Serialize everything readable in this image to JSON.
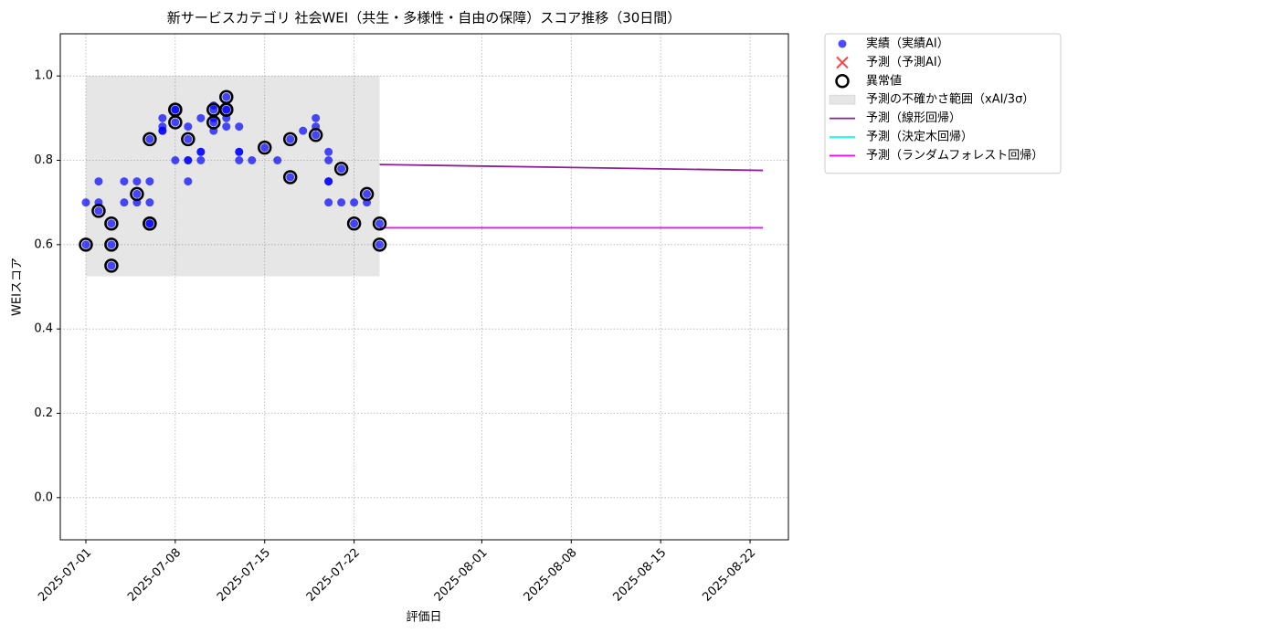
{
  "chart_data": {
    "type": "scatter",
    "title": "新サービスカテゴリ 社会WEI（共生・多様性・自由の保障）スコア推移（30日間）",
    "x_label": "評価日",
    "y_label": "WEIスコア",
    "xlim": [
      "2025-06-29",
      "2025-08-25"
    ],
    "xticks": [
      "2025-07-01",
      "2025-07-08",
      "2025-07-15",
      "2025-07-22",
      "2025-08-01",
      "2025-08-08",
      "2025-08-15",
      "2025-08-22"
    ],
    "ylim": [
      -0.1,
      1.1
    ],
    "yticks": [
      {
        "value": 0,
        "label": "0.0"
      },
      {
        "value": 0.2,
        "label": "0.2"
      },
      {
        "value": 0.4,
        "label": "0.4"
      },
      {
        "value": 0.6,
        "label": "0.6"
      },
      {
        "value": 0.8,
        "label": "0.8"
      },
      {
        "value": 1,
        "label": "1.0"
      }
    ],
    "grid": true,
    "legend": "outside-upper-right",
    "series": [
      {
        "name": "実績（実績AI）",
        "kind": "dots",
        "color": "#0000ff",
        "x": [
          "2025-07-01",
          "2025-07-01",
          "2025-07-02",
          "2025-07-02",
          "2025-07-02",
          "2025-07-03",
          "2025-07-03",
          "2025-07-03",
          "2025-07-04",
          "2025-07-04",
          "2025-07-05",
          "2025-07-05",
          "2025-07-05",
          "2025-07-06",
          "2025-07-06",
          "2025-07-06",
          "2025-07-06",
          "2025-07-06",
          "2025-07-07",
          "2025-07-07",
          "2025-07-07",
          "2025-07-07",
          "2025-07-08",
          "2025-07-08",
          "2025-07-08",
          "2025-07-08",
          "2025-07-09",
          "2025-07-09",
          "2025-07-09",
          "2025-07-09",
          "2025-07-09",
          "2025-07-10",
          "2025-07-10",
          "2025-07-10",
          "2025-07-10",
          "2025-07-11",
          "2025-07-11",
          "2025-07-11",
          "2025-07-11",
          "2025-07-11",
          "2025-07-12",
          "2025-07-12",
          "2025-07-12",
          "2025-07-12",
          "2025-07-12",
          "2025-07-13",
          "2025-07-13",
          "2025-07-13",
          "2025-07-13",
          "2025-07-14",
          "2025-07-15",
          "2025-07-16",
          "2025-07-17",
          "2025-07-17",
          "2025-07-18",
          "2025-07-19",
          "2025-07-19",
          "2025-07-19",
          "2025-07-20",
          "2025-07-20",
          "2025-07-20",
          "2025-07-20",
          "2025-07-20",
          "2025-07-21",
          "2025-07-21",
          "2025-07-22",
          "2025-07-22",
          "2025-07-23",
          "2025-07-23",
          "2025-07-24",
          "2025-07-24"
        ],
        "values": [
          0.6,
          0.7,
          0.68,
          0.75,
          0.7,
          0.55,
          0.65,
          0.6,
          0.7,
          0.75,
          0.7,
          0.75,
          0.72,
          0.65,
          0.65,
          0.7,
          0.75,
          0.85,
          0.88,
          0.9,
          0.87,
          0.87,
          0.8,
          0.92,
          0.89,
          0.92,
          0.88,
          0.85,
          0.8,
          0.75,
          0.8,
          0.9,
          0.82,
          0.8,
          0.82,
          0.9,
          0.92,
          0.87,
          0.89,
          0.93,
          0.95,
          0.92,
          0.92,
          0.88,
          0.9,
          0.8,
          0.82,
          0.88,
          0.82,
          0.8,
          0.83,
          0.8,
          0.85,
          0.76,
          0.87,
          0.86,
          0.9,
          0.88,
          0.8,
          0.82,
          0.7,
          0.75,
          0.75,
          0.78,
          0.7,
          0.65,
          0.7,
          0.7,
          0.72,
          0.65,
          0.6
        ]
      },
      {
        "name": "予測（予測AI）",
        "kind": "cross",
        "color": "#ff0000",
        "x": [],
        "values": []
      },
      {
        "name": "異常値",
        "kind": "ring",
        "color": "#000000",
        "x": [
          "2025-07-01",
          "2025-07-02",
          "2025-07-03",
          "2025-07-03",
          "2025-07-03",
          "2025-07-05",
          "2025-07-06",
          "2025-07-06",
          "2025-07-06",
          "2025-07-08",
          "2025-07-08",
          "2025-07-08",
          "2025-07-09",
          "2025-07-11",
          "2025-07-11",
          "2025-07-12",
          "2025-07-12",
          "2025-07-12",
          "2025-07-15",
          "2025-07-17",
          "2025-07-17",
          "2025-07-19",
          "2025-07-21",
          "2025-07-22",
          "2025-07-23",
          "2025-07-24",
          "2025-07-24"
        ],
        "values": [
          0.6,
          0.68,
          0.55,
          0.65,
          0.6,
          0.72,
          0.65,
          0.65,
          0.85,
          0.92,
          0.89,
          0.92,
          0.85,
          0.92,
          0.89,
          0.95,
          0.92,
          0.92,
          0.83,
          0.85,
          0.76,
          0.86,
          0.78,
          0.65,
          0.72,
          0.65,
          0.6
        ]
      },
      {
        "name": "予測の不確かさ範囲（xAI/3σ）",
        "kind": "band",
        "color": "#808080",
        "x": [
          "2025-07-01",
          "2025-07-24"
        ],
        "lower": [
          0.525,
          0.525
        ],
        "upper": [
          1,
          1
        ]
      },
      {
        "name": "予測（線形回帰）",
        "kind": "line",
        "color": "#8e1f98",
        "x": [
          "2025-07-24",
          "2025-08-23"
        ],
        "values": [
          0.79,
          0.776
        ]
      },
      {
        "name": "予測（決定木回帰）",
        "kind": "line",
        "color": "#00ffff",
        "x": [
          "2025-07-24",
          "2025-08-23"
        ],
        "values": [
          0.64,
          0.64
        ]
      },
      {
        "name": "予測（ランダムフォレスト回帰）",
        "kind": "line",
        "color": "#ff00ff",
        "x": [
          "2025-07-24",
          "2025-08-23"
        ],
        "values": [
          0.64,
          0.64
        ]
      }
    ]
  }
}
